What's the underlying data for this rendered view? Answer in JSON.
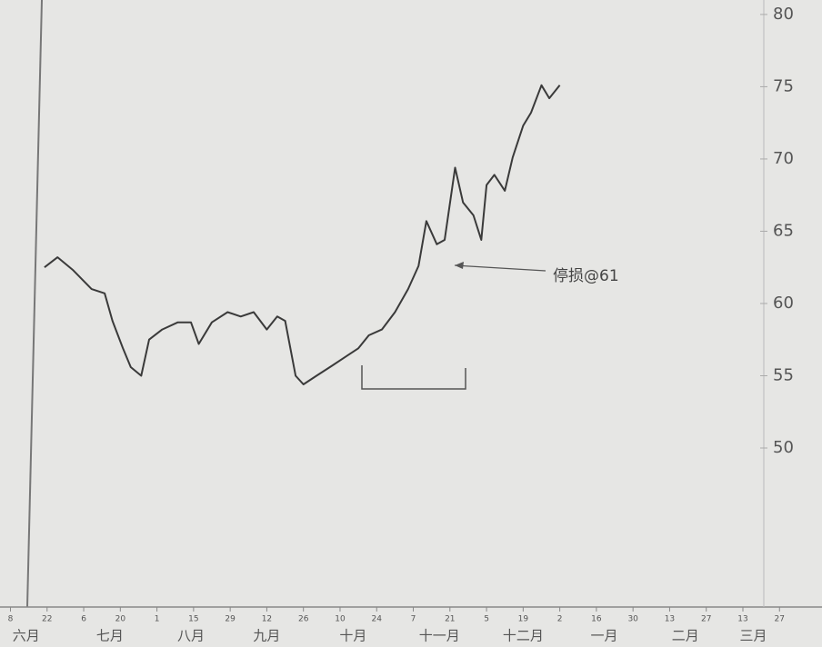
{
  "chart_data": {
    "type": "line",
    "annotation": "停损@61",
    "x": [
      13,
      18,
      24,
      31,
      36,
      39,
      43,
      46,
      50,
      53,
      58,
      64,
      69,
      72,
      77,
      83,
      88,
      93,
      98,
      102,
      105,
      109,
      112,
      117,
      123,
      128,
      133,
      137,
      142,
      147,
      152,
      156,
      159,
      163,
      166,
      170,
      173,
      177,
      180,
      182,
      185,
      189,
      192,
      196,
      199,
      203,
      206,
      210
    ],
    "values": [
      62.5,
      63.2,
      62.3,
      61.0,
      60.7,
      58.8,
      56.9,
      55.6,
      55.0,
      57.5,
      58.2,
      58.7,
      58.7,
      57.2,
      58.7,
      59.4,
      59.1,
      59.4,
      58.2,
      59.1,
      58.8,
      55.0,
      54.4,
      55.0,
      55.7,
      56.3,
      56.9,
      57.8,
      58.2,
      59.4,
      61.0,
      62.6,
      65.7,
      64.1,
      64.4,
      69.4,
      67.0,
      66.1,
      64.4,
      68.2,
      68.9,
      67.8,
      70.1,
      72.3,
      73.2,
      75.1,
      74.2,
      75.1
    ],
    "color": "#3a3a3a",
    "xlim": [
      -4,
      288
    ],
    "ylim": [
      39.5,
      81
    ],
    "yticks": [
      50,
      55,
      60,
      65,
      70,
      75,
      80
    ],
    "xticks": [
      {
        "value": 0,
        "label": "8"
      },
      {
        "value": 14,
        "label": "22"
      },
      {
        "value": 28,
        "label": "6"
      },
      {
        "value": 42,
        "label": "20"
      },
      {
        "value": 56,
        "label": "1"
      },
      {
        "value": 70,
        "label": "15"
      },
      {
        "value": 84,
        "label": "29"
      },
      {
        "value": 98,
        "label": "12"
      },
      {
        "value": 112,
        "label": "26"
      },
      {
        "value": 126,
        "label": "10"
      },
      {
        "value": 140,
        "label": "24"
      },
      {
        "value": 154,
        "label": "7"
      },
      {
        "value": 168,
        "label": "21"
      },
      {
        "value": 182,
        "label": "5"
      },
      {
        "value": 196,
        "label": "19"
      },
      {
        "value": 210,
        "label": "2"
      },
      {
        "value": 224,
        "label": "16"
      },
      {
        "value": 238,
        "label": "30"
      },
      {
        "value": 252,
        "label": "13"
      },
      {
        "value": 266,
        "label": "27"
      },
      {
        "value": 280,
        "label": "13"
      },
      {
        "value": 294,
        "label": "27"
      }
    ],
    "month_ticks": [
      {
        "value": 6,
        "label": "六月"
      },
      {
        "value": 38,
        "label": "七月"
      },
      {
        "value": 69,
        "label": "八月"
      },
      {
        "value": 98,
        "label": "九月"
      },
      {
        "value": 131,
        "label": "十月"
      },
      {
        "value": 164,
        "label": "十一月"
      },
      {
        "value": 196,
        "label": "十二月"
      },
      {
        "value": 227,
        "label": "一月"
      },
      {
        "value": 258,
        "label": "二月"
      },
      {
        "value": 284,
        "label": "三月"
      }
    ]
  }
}
